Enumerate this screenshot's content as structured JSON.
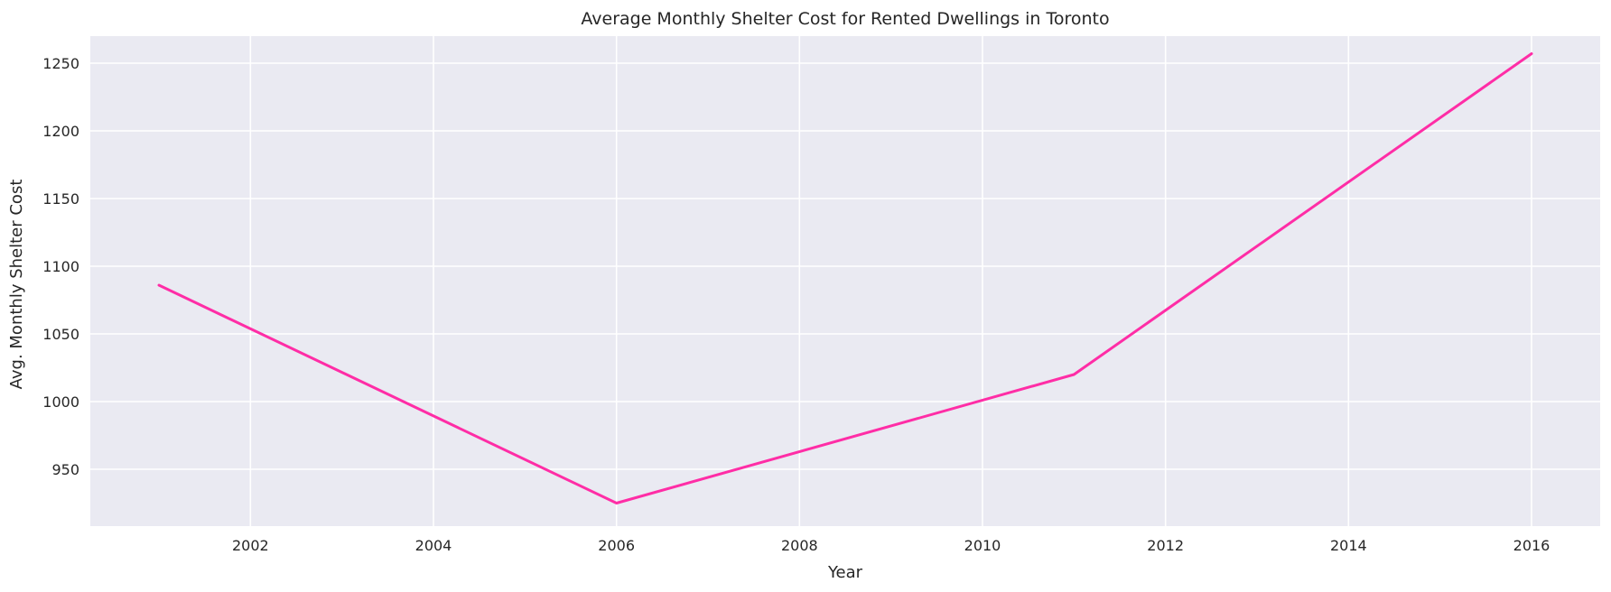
{
  "chart_data": {
    "type": "line",
    "title": "Average Monthly Shelter Cost for Rented Dwellings in Toronto",
    "xlabel": "Year",
    "ylabel": "Avg. Monthly Shelter Cost",
    "xlim": [
      2000.25,
      2016.75
    ],
    "ylim": [
      908,
      1270
    ],
    "xticks": [
      2002,
      2004,
      2006,
      2008,
      2010,
      2012,
      2014,
      2016
    ],
    "yticks": [
      950,
      1000,
      1050,
      1100,
      1150,
      1200,
      1250
    ],
    "grid": true,
    "series": [
      {
        "color": "#ff2da6",
        "x": [
          2001,
          2006,
          2011,
          2016
        ],
        "y": [
          1086,
          925,
          1020,
          1257
        ]
      }
    ],
    "colors": {
      "plot_background": "#eaeaf2",
      "grid": "#ffffff",
      "line": "#ff2da6",
      "text": "#262626"
    }
  }
}
